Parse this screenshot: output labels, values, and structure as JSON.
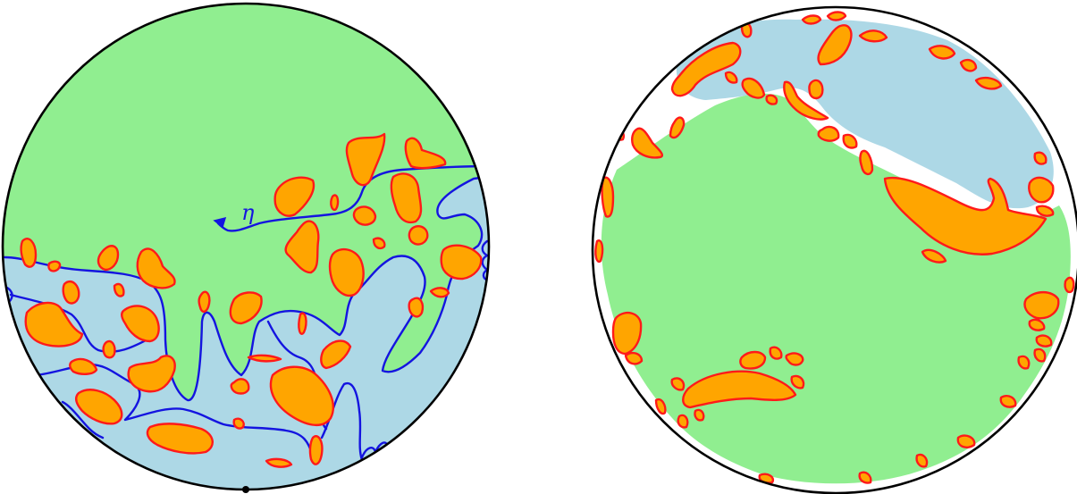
{
  "labels": {
    "curve_symbol": "η"
  },
  "colors": {
    "upper_region": "#90ee90",
    "lower_region": "#add8e6",
    "islands_fill": "#ffa500",
    "islands_outline": "#ff1a1a",
    "curve": "#1414e0",
    "disk_boundary": "#000000"
  }
}
